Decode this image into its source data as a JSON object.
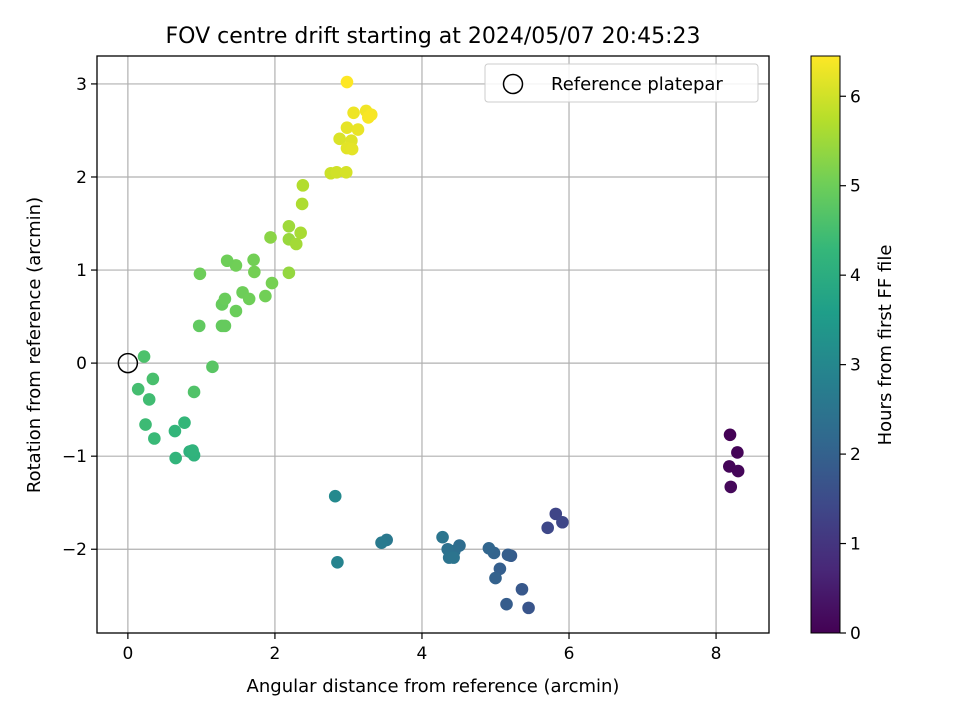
{
  "chart_data": {
    "type": "scatter",
    "title": "FOV centre drift starting at 2024/05/07 20:45:23",
    "xlabel": "Angular distance from reference (arcmin)",
    "ylabel": "Rotation from reference (arcmin)",
    "xlim": [
      -0.42,
      8.72
    ],
    "ylim": [
      -2.9,
      3.3
    ],
    "xticks": [
      0,
      2,
      4,
      6,
      8
    ],
    "xtick_labels": [
      "0",
      "2",
      "4",
      "6",
      "8"
    ],
    "yticks": [
      -2,
      -1,
      0,
      1,
      2,
      3
    ],
    "ytick_labels": [
      "−2",
      "−1",
      "0",
      "1",
      "2",
      "3"
    ],
    "grid": true,
    "legend": {
      "location": "upper-right",
      "entries": [
        {
          "label": "Reference platepar",
          "marker": "open-circle"
        }
      ]
    },
    "reference": {
      "x": 0,
      "y": 0
    },
    "colorbar": {
      "label": "Hours from first FF file",
      "range": [
        0,
        6.45
      ],
      "ticks": [
        0,
        1,
        2,
        3,
        4,
        5,
        6
      ],
      "tick_labels": [
        "0",
        "1",
        "2",
        "3",
        "4",
        "5",
        "6"
      ],
      "colormap": [
        "#440154",
        "#482878",
        "#3e4989",
        "#31688e",
        "#26828e",
        "#1f9e89",
        "#35b779",
        "#6ece58",
        "#b5de2b",
        "#fde725"
      ]
    },
    "points": [
      {
        "x": 8.19,
        "y": -0.77,
        "c": 0.02
      },
      {
        "x": 8.29,
        "y": -0.96,
        "c": 0.05
      },
      {
        "x": 8.18,
        "y": -1.11,
        "c": 0.08
      },
      {
        "x": 8.3,
        "y": -1.16,
        "c": 0.1
      },
      {
        "x": 8.2,
        "y": -1.33,
        "c": 0.12
      },
      {
        "x": 5.82,
        "y": -1.62,
        "c": 1.35
      },
      {
        "x": 5.91,
        "y": -1.71,
        "c": 1.38
      },
      {
        "x": 5.71,
        "y": -1.77,
        "c": 1.42
      },
      {
        "x": 5.45,
        "y": -2.63,
        "c": 1.7
      },
      {
        "x": 5.36,
        "y": -2.43,
        "c": 1.78
      },
      {
        "x": 5.21,
        "y": -2.07,
        "c": 1.85
      },
      {
        "x": 5.15,
        "y": -2.59,
        "c": 1.9
      },
      {
        "x": 5.06,
        "y": -2.21,
        "c": 1.95
      },
      {
        "x": 5.0,
        "y": -2.31,
        "c": 2.0
      },
      {
        "x": 4.98,
        "y": -2.04,
        "c": 2.05
      },
      {
        "x": 4.91,
        "y": -1.99,
        "c": 2.1
      },
      {
        "x": 5.17,
        "y": -2.06,
        "c": 1.92
      },
      {
        "x": 4.51,
        "y": -1.96,
        "c": 2.3
      },
      {
        "x": 4.44,
        "y": -2.02,
        "c": 2.35
      },
      {
        "x": 4.35,
        "y": -2.0,
        "c": 2.4
      },
      {
        "x": 4.37,
        "y": -2.09,
        "c": 2.45
      },
      {
        "x": 4.43,
        "y": -2.09,
        "c": 2.48
      },
      {
        "x": 4.28,
        "y": -1.87,
        "c": 2.5
      },
      {
        "x": 3.52,
        "y": -1.9,
        "c": 2.6
      },
      {
        "x": 3.45,
        "y": -1.93,
        "c": 2.65
      },
      {
        "x": 2.85,
        "y": -2.14,
        "c": 2.9
      },
      {
        "x": 2.82,
        "y": -1.43,
        "c": 3.05
      },
      {
        "x": 0.84,
        "y": -0.95,
        "c": 4.1
      },
      {
        "x": 0.9,
        "y": -0.99,
        "c": 4.15
      },
      {
        "x": 0.88,
        "y": -0.94,
        "c": 4.18
      },
      {
        "x": 0.65,
        "y": -1.02,
        "c": 4.2
      },
      {
        "x": 0.64,
        "y": -0.73,
        "c": 4.25
      },
      {
        "x": 0.77,
        "y": -0.64,
        "c": 4.28
      },
      {
        "x": 0.36,
        "y": -0.81,
        "c": 4.35
      },
      {
        "x": 0.24,
        "y": -0.66,
        "c": 4.4
      },
      {
        "x": 0.29,
        "y": -0.39,
        "c": 4.45
      },
      {
        "x": 0.14,
        "y": -0.28,
        "c": 4.5
      },
      {
        "x": 0.34,
        "y": -0.17,
        "c": 4.55
      },
      {
        "x": 0.22,
        "y": 0.07,
        "c": 4.6
      },
      {
        "x": 0.9,
        "y": -0.31,
        "c": 4.65
      },
      {
        "x": 1.15,
        "y": -0.04,
        "c": 4.75
      },
      {
        "x": 0.97,
        "y": 0.4,
        "c": 4.85
      },
      {
        "x": 1.28,
        "y": 0.4,
        "c": 4.88
      },
      {
        "x": 1.32,
        "y": 0.4,
        "c": 4.9
      },
      {
        "x": 1.28,
        "y": 0.63,
        "c": 4.92
      },
      {
        "x": 1.32,
        "y": 0.69,
        "c": 4.95
      },
      {
        "x": 1.47,
        "y": 0.56,
        "c": 4.97
      },
      {
        "x": 1.56,
        "y": 0.76,
        "c": 5.0
      },
      {
        "x": 1.65,
        "y": 0.69,
        "c": 5.02
      },
      {
        "x": 1.87,
        "y": 0.72,
        "c": 5.05
      },
      {
        "x": 1.96,
        "y": 0.86,
        "c": 5.1
      },
      {
        "x": 1.72,
        "y": 0.98,
        "c": 5.08
      },
      {
        "x": 1.71,
        "y": 1.11,
        "c": 5.06
      },
      {
        "x": 1.47,
        "y": 1.05,
        "c": 5.04
      },
      {
        "x": 1.35,
        "y": 1.1,
        "c": 5.02
      },
      {
        "x": 0.98,
        "y": 0.96,
        "c": 5.0
      },
      {
        "x": 1.94,
        "y": 1.35,
        "c": 5.3
      },
      {
        "x": 2.19,
        "y": 0.97,
        "c": 5.4
      },
      {
        "x": 2.19,
        "y": 1.33,
        "c": 5.45
      },
      {
        "x": 2.19,
        "y": 1.47,
        "c": 5.5
      },
      {
        "x": 2.29,
        "y": 1.28,
        "c": 5.55
      },
      {
        "x": 2.35,
        "y": 1.4,
        "c": 5.6
      },
      {
        "x": 2.37,
        "y": 1.71,
        "c": 5.65
      },
      {
        "x": 2.38,
        "y": 1.91,
        "c": 5.7
      },
      {
        "x": 2.76,
        "y": 2.04,
        "c": 5.95
      },
      {
        "x": 2.84,
        "y": 2.05,
        "c": 6.0
      },
      {
        "x": 2.97,
        "y": 2.05,
        "c": 6.05
      },
      {
        "x": 2.88,
        "y": 2.41,
        "c": 6.1
      },
      {
        "x": 3.04,
        "y": 2.39,
        "c": 6.15
      },
      {
        "x": 2.98,
        "y": 2.31,
        "c": 6.18
      },
      {
        "x": 3.05,
        "y": 2.3,
        "c": 6.2
      },
      {
        "x": 2.98,
        "y": 2.53,
        "c": 6.22
      },
      {
        "x": 3.13,
        "y": 2.51,
        "c": 6.25
      },
      {
        "x": 3.07,
        "y": 2.69,
        "c": 6.3
      },
      {
        "x": 3.24,
        "y": 2.71,
        "c": 6.33
      },
      {
        "x": 3.31,
        "y": 2.67,
        "c": 6.38
      },
      {
        "x": 3.27,
        "y": 2.64,
        "c": 6.4
      },
      {
        "x": 2.98,
        "y": 3.02,
        "c": 6.45
      }
    ]
  }
}
